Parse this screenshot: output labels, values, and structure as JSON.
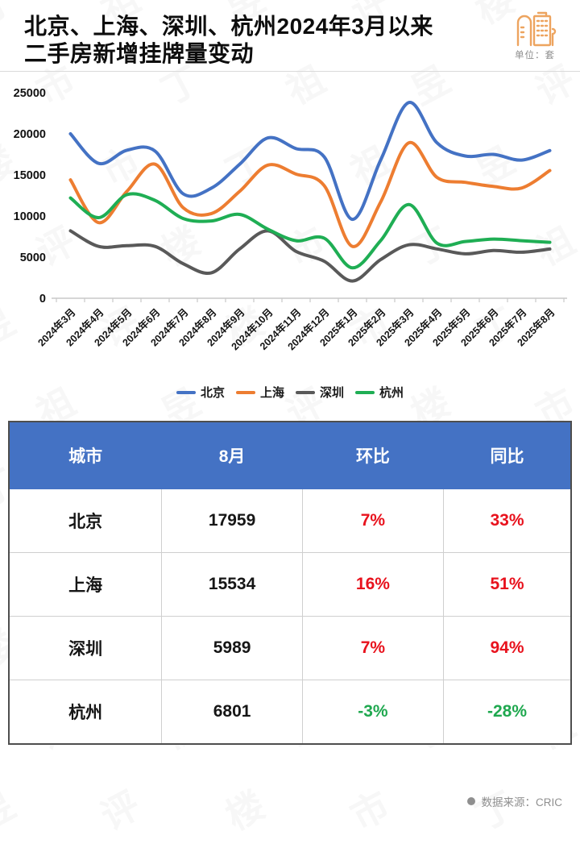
{
  "header": {
    "title_line1": "北京、上海、深圳、杭州2024年3月以来",
    "title_line2": "二手房新增挂牌量变动",
    "unit": "单位：套"
  },
  "watermark": {
    "text": "丁祖昱评楼市"
  },
  "chart_data": {
    "type": "line",
    "smooth": true,
    "grid": false,
    "legend_position": "bottom",
    "ylim": [
      0,
      25000
    ],
    "yticks": [
      0,
      5000,
      10000,
      15000,
      20000,
      25000
    ],
    "categories": [
      "2024年3月",
      "2024年4月",
      "2024年5月",
      "2024年6月",
      "2024年7月",
      "2024年8月",
      "2024年9月",
      "2024年10月",
      "2024年11月",
      "2024年12月",
      "2025年1月",
      "2025年2月",
      "2025年3月",
      "2025年4月",
      "2025年5月",
      "2025年6月",
      "2025年7月",
      "2025年8月"
    ],
    "series": [
      {
        "name": "北京",
        "color": "#4472C4",
        "values": [
          20000,
          16400,
          18000,
          17900,
          12700,
          13400,
          16300,
          19500,
          18200,
          17200,
          9600,
          16800,
          23800,
          18900,
          17300,
          17500,
          16800,
          17959
        ]
      },
      {
        "name": "上海",
        "color": "#ED7D31",
        "values": [
          14400,
          9200,
          13000,
          16300,
          11000,
          10300,
          13000,
          16200,
          15100,
          13700,
          6300,
          11700,
          18900,
          14700,
          14100,
          13600,
          13400,
          15534
        ]
      },
      {
        "name": "深圳",
        "color": "#595959",
        "values": [
          8200,
          6300,
          6400,
          6300,
          4200,
          3100,
          6000,
          8200,
          5700,
          4500,
          2100,
          4700,
          6500,
          6000,
          5400,
          5800,
          5600,
          5989
        ]
      },
      {
        "name": "杭州",
        "color": "#1FAE54",
        "values": [
          12200,
          9800,
          12600,
          11900,
          9700,
          9400,
          10200,
          8400,
          7000,
          7300,
          3700,
          7000,
          11400,
          6700,
          6900,
          7200,
          7000,
          6801
        ]
      }
    ]
  },
  "table": {
    "columns": [
      "城市",
      "8月",
      "环比",
      "同比"
    ],
    "rows": [
      {
        "city": "北京",
        "aug": "17959",
        "mom": "7%",
        "yoy": "33%",
        "direction": "up"
      },
      {
        "city": "上海",
        "aug": "15534",
        "mom": "16%",
        "yoy": "51%",
        "direction": "up"
      },
      {
        "city": "深圳",
        "aug": "5989",
        "mom": "7%",
        "yoy": "94%",
        "direction": "up"
      },
      {
        "city": "杭州",
        "aug": "6801",
        "mom": "-3%",
        "yoy": "-28%",
        "direction": "down"
      }
    ]
  },
  "footer": {
    "source": "数据来源：CRIC"
  },
  "colors": {
    "up": "#e8121d",
    "down": "#1fa84f",
    "header_bg": "#4472C4",
    "brand_icon": "#EDA45F"
  }
}
